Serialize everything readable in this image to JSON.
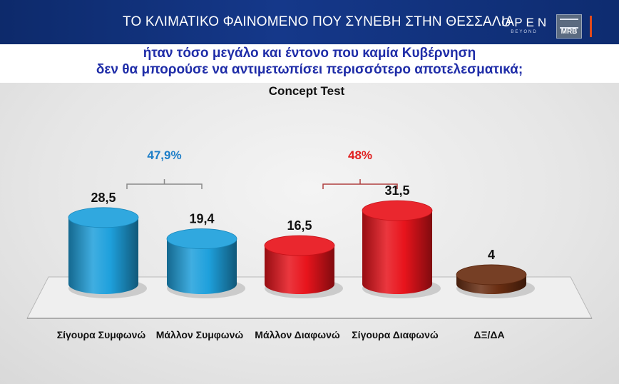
{
  "header": {
    "title": "ΤΟ ΚΛΙΜΑΤΙΚΟ ΦΑΙΝΟΜΕΝΟ ΠΟΥ ΣΥΝΕΒΗ ΣΤΗΝ ΘΕΣΣΑΛΙΑ",
    "logo_open": "OPEN",
    "logo_open_sub": "BEYOND",
    "logo_mrb": "MRB"
  },
  "question": {
    "line1": "ήταν τόσο μεγάλο και έντονο που καμία Κυβέρνηση",
    "line2": "δεν θα μπορούσε να αντιμετωπίσει περισσότερο αποτελεσματικά;"
  },
  "chart_data": {
    "type": "bar",
    "title": "Concept Test",
    "categories": [
      "Σίγουρα Συμφωνώ",
      "Μάλλον Συμφωνώ",
      "Μάλλον Διαφωνώ",
      "Σίγουρα Διαφωνώ",
      "ΔΞ/ΔΑ"
    ],
    "values": [
      28.5,
      19.4,
      16.5,
      31.5,
      4
    ],
    "value_labels": [
      "28,5",
      "19,4",
      "16,5",
      "31,5",
      "4"
    ],
    "colors": [
      "#1ea0dc",
      "#1ea0dc",
      "#e8141c",
      "#e8141c",
      "#6a2e12"
    ],
    "groups": [
      {
        "label": "47,9%",
        "from": 0,
        "to": 1,
        "color": "#1f7fc8"
      },
      {
        "label": "48%",
        "from": 2,
        "to": 3,
        "color": "#e02020"
      }
    ],
    "ylim": [
      0,
      35
    ],
    "grid": false
  }
}
